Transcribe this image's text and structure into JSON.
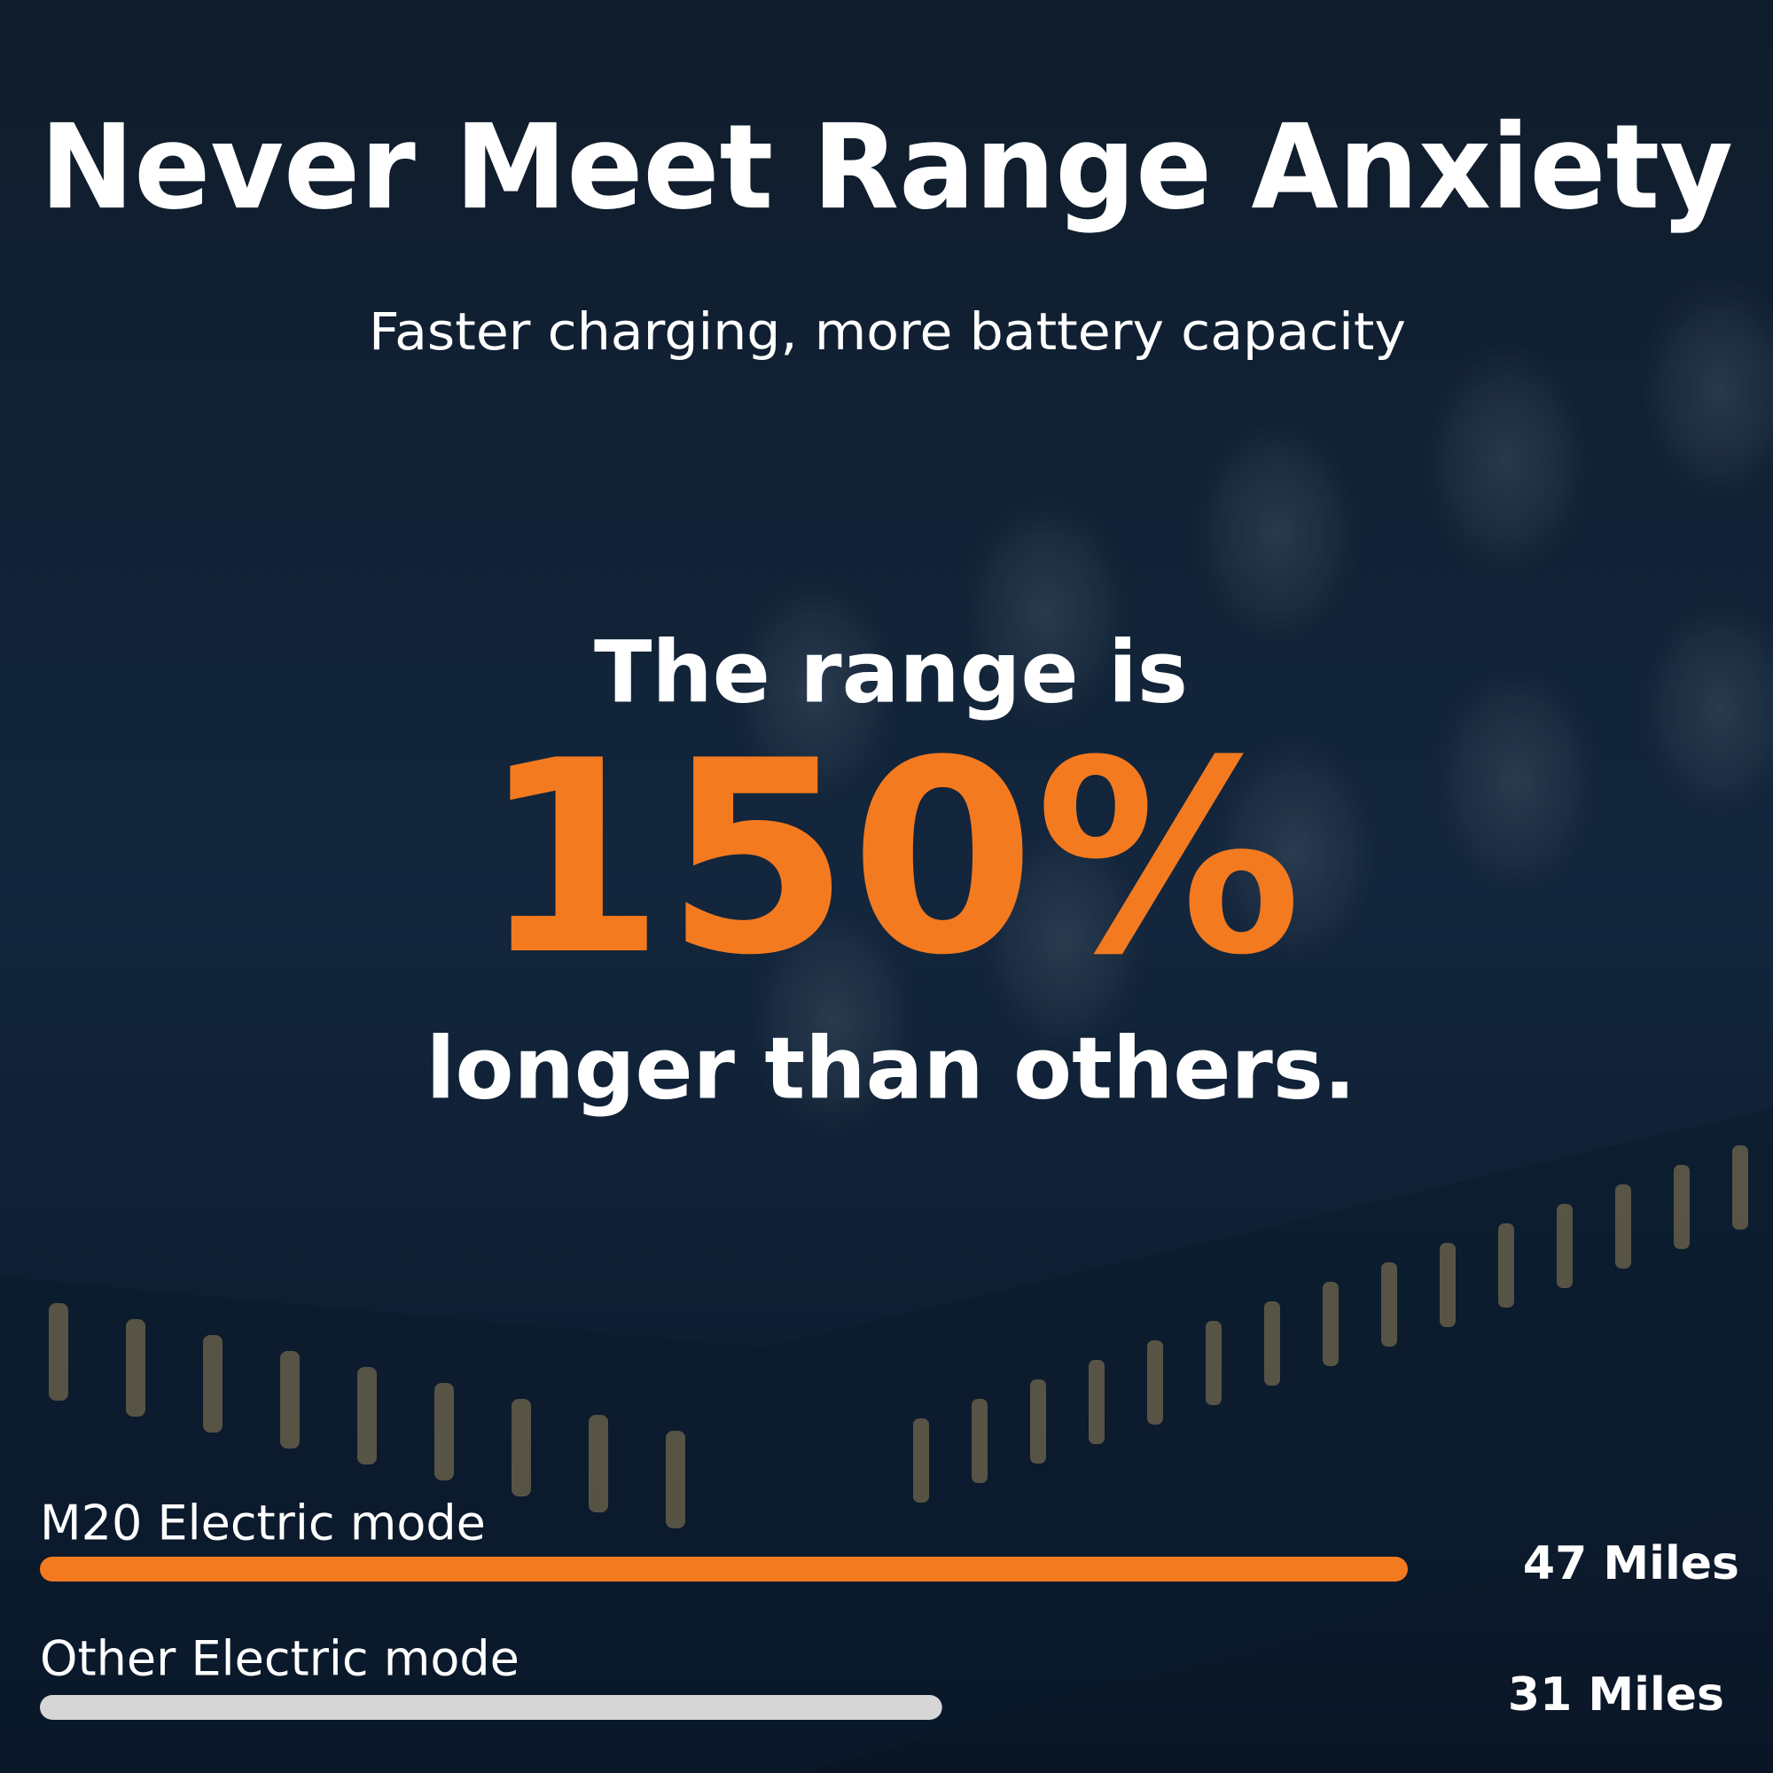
{
  "chart_data": {
    "type": "bar",
    "orientation": "horizontal",
    "title": "Never Meet Range Anxiety",
    "subtitle": "Faster charging, more battery capacity",
    "annotations": [
      "The range is",
      "150%",
      "longer than others."
    ],
    "categories": [
      "M20 Electric mode",
      "Other Electric mode"
    ],
    "values": [
      47,
      31
    ],
    "value_labels": [
      "47 Miles",
      "31 Miles"
    ],
    "colors": [
      "#f47a20",
      "#d6d6d6"
    ]
  }
}
